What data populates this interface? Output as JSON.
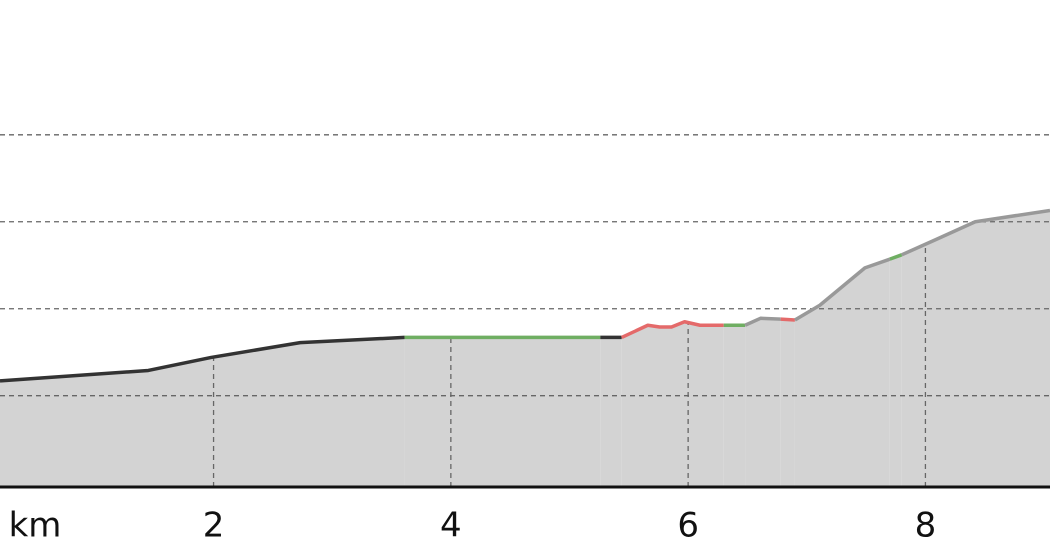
{
  "chart_data": {
    "type": "area",
    "x_unit_label": "km",
    "xlim": [
      0.2,
      9.05
    ],
    "xticks": [
      2,
      4,
      6,
      8
    ],
    "ylim": [
      0,
      5.6
    ],
    "ygrid": [
      1.05,
      2.05,
      3.05,
      4.05
    ],
    "fill_color": "#d3d3d3",
    "segments": [
      {
        "color": "#333333",
        "x": [
          0.2,
          1.45,
          1.98,
          2.73,
          3.61
        ],
        "values": [
          1.22,
          1.34,
          1.49,
          1.66,
          1.72
        ]
      },
      {
        "color": "#6fae62",
        "x": [
          3.61,
          5.26
        ],
        "values": [
          1.72,
          1.72
        ]
      },
      {
        "color": "#333333",
        "x": [
          5.26,
          5.44
        ],
        "values": [
          1.72,
          1.72
        ]
      },
      {
        "color": "#e46a6a",
        "x": [
          5.44,
          5.66,
          5.76,
          5.86,
          5.97,
          6.1,
          6.3
        ],
        "values": [
          1.72,
          1.86,
          1.84,
          1.84,
          1.9,
          1.86,
          1.86
        ]
      },
      {
        "color": "#6fae62",
        "x": [
          6.3,
          6.48
        ],
        "values": [
          1.86,
          1.86
        ]
      },
      {
        "color": "#999999",
        "x": [
          6.48,
          6.61,
          6.78
        ],
        "values": [
          1.86,
          1.94,
          1.93
        ]
      },
      {
        "color": "#e46a6a",
        "x": [
          6.78,
          6.9
        ],
        "values": [
          1.93,
          1.92
        ]
      },
      {
        "color": "#999999",
        "x": [
          6.9,
          7.11,
          7.49,
          7.7
        ],
        "values": [
          1.92,
          2.09,
          2.52,
          2.62
        ]
      },
      {
        "color": "#6fae62",
        "x": [
          7.7,
          7.8
        ],
        "values": [
          2.62,
          2.67
        ]
      },
      {
        "color": "#999999",
        "x": [
          7.8,
          8.08,
          8.42,
          9.05
        ],
        "values": [
          2.67,
          2.84,
          3.05,
          3.18
        ]
      }
    ]
  }
}
